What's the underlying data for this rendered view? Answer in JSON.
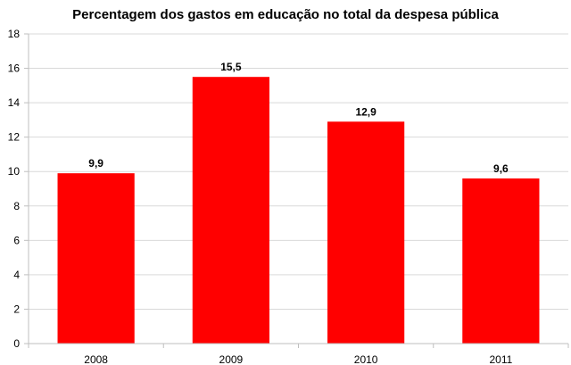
{
  "chart_data": {
    "type": "bar",
    "title": "Percentagem dos gastos em educação no total da despesa pública",
    "xlabel": "",
    "ylabel": "",
    "categories": [
      "2008",
      "2009",
      "2010",
      "2011"
    ],
    "values": [
      9.9,
      15.5,
      12.9,
      9.6
    ],
    "data_labels": [
      "9,9",
      "15,5",
      "12,9",
      "9,6"
    ],
    "ylim": [
      0,
      18
    ],
    "yticks": [
      0,
      2,
      4,
      6,
      8,
      10,
      12,
      14,
      16,
      18
    ],
    "ytick_labels": [
      "0",
      "2",
      "4",
      "6",
      "8",
      "10",
      "12",
      "14",
      "16",
      "18"
    ],
    "grid": true,
    "legend": "none",
    "bar_color": "#ff0000",
    "grid_color": "#d9d9d9",
    "axis_color": "#bfbfbf"
  }
}
